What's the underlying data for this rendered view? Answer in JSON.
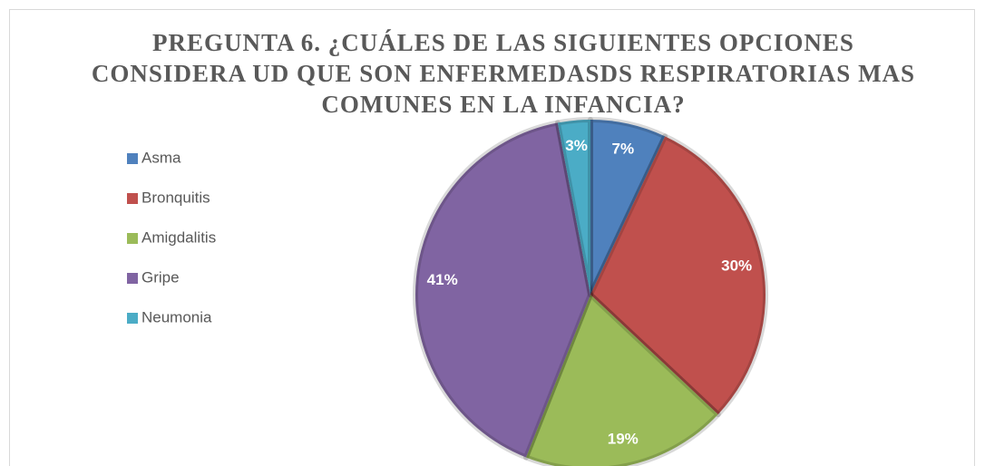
{
  "chart_data": {
    "type": "pie",
    "title": "PREGUNTA 6. ¿CUÁLES DE LAS SIGUIENTES OPCIONES CONSIDERA UD QUE SON ENFERMEDASDS RESPIRATORIAS MAS COMUNES EN LA INFANCIA?",
    "categories": [
      "Asma",
      "Bronquitis",
      "Amigdalitis",
      "Gripe",
      "Neumonia"
    ],
    "values": [
      7,
      30,
      19,
      41,
      3
    ],
    "value_labels": [
      "7%",
      "30%",
      "19%",
      "41%",
      "3%"
    ],
    "colors": [
      "#4f81bd",
      "#c0504d",
      "#9bbb59",
      "#8064a2",
      "#4bacc6"
    ],
    "legend": "left"
  }
}
